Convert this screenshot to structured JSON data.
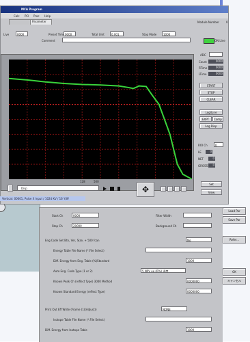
{
  "app": {
    "title": "MCA Program",
    "menu": [
      "Calc",
      "PCI",
      "Proc",
      "Help"
    ],
    "tabs": [
      "Parameter"
    ],
    "right_label": "Module Number",
    "right_value": "0"
  },
  "top_bar": {
    "fields": [
      {
        "label": "Live",
        "value": "0000"
      },
      {
        "label": "Preset Time",
        "value": "0000"
      },
      {
        "label": "Total Unit",
        "value": "0.001"
      },
      {
        "label": "Stop Mode",
        "value": "1000"
      }
    ],
    "comment_label": "Comment"
  },
  "status": {
    "led_label": "ON Line"
  },
  "side_fields": [
    {
      "label": "ADC",
      "value": ""
    },
    {
      "label": "Count",
      "value": "0000"
    },
    {
      "label": "RTime",
      "value": "0000"
    },
    {
      "label": "LTime",
      "value": "0000"
    }
  ],
  "side_buttons": [
    "START",
    "STOP",
    "CLEAR",
    "Log/Line",
    "EXPT",
    "Log Disp"
  ],
  "side_button_small": "Comp",
  "roi": [
    {
      "label": "ROI Ch",
      "value": "0"
    },
    {
      "label": "LE",
      "value": "0"
    },
    {
      "label": "NET",
      "value": "0"
    },
    {
      "label": "GROSS",
      "value": "0"
    }
  ],
  "set_button": "Set",
  "view_button": "View",
  "chart_data": {
    "type": "line",
    "title": "",
    "xlabel": "",
    "ylabel": "",
    "x_tick_labels": [
      "128",
      "500"
    ],
    "grid": true,
    "series": [
      {
        "x": [
          0,
          10,
          20,
          30,
          40,
          50,
          60,
          65,
          68,
          70,
          71,
          75,
          78,
          82,
          85,
          88,
          90,
          92,
          95,
          100
        ],
        "y": [
          0.62,
          0.59,
          0.55,
          0.52,
          0.5,
          0.49,
          0.47,
          0.44,
          0.42,
          0.45,
          0.47,
          0.46,
          0.3,
          0.1,
          -0.2,
          -0.5,
          -0.8,
          -1.1,
          -1.3,
          -1.4
        ],
        "color": "#39d33b"
      }
    ],
    "xlim": [
      0,
      100
    ],
    "ylim": [
      -1.4,
      1.0
    ]
  },
  "chart_toolbar": {
    "dropdown": "Disp"
  },
  "bottom_strip": "Vertical: 00001, Pulse X Input / 1024 KV / 16 Y/W",
  "params": {
    "start_ch_label": "Start Ch",
    "start_ch": "0000",
    "stop_ch_label": "Stop Ch",
    "stop_ch": "20000",
    "filter_width_label": "Filter Width",
    "filter_width": "",
    "background_label": "Background Ch",
    "background": "",
    "rows": [
      {
        "label": "Eng Code Set Btn, Ver, Size, + 500 fcan",
        "value": "No"
      },
      {
        "label": "Energy Table File Name (*.File Select)",
        "value": ""
      },
      {
        "label": "Diff. Energy from Eng. Table (%)Standard",
        "value": "1000"
      },
      {
        "label": "Auto Eng. Code Type (1 or 2)",
        "value": "5 NPV ee (R%) 温度"
      },
      {
        "label": "Known Peak Ch (reflect Type) 3000 Method",
        "value": "0000000"
      },
      {
        "label": "Known Standard Energy (reflect Type)",
        "value": "0000000"
      },
      {
        "label": "Print Out Eff Write (Frame (1)(Adjust))",
        "value": "NONE"
      },
      {
        "label": "Isotope Table File Name (*.File Select)",
        "value": ""
      },
      {
        "label": "Diff. Energy from Isotope Table",
        "value": "1000"
      }
    ]
  },
  "right_buttons": [
    "Load Par",
    "Save Par",
    "Refer...",
    "OK",
    "キャンセル"
  ]
}
